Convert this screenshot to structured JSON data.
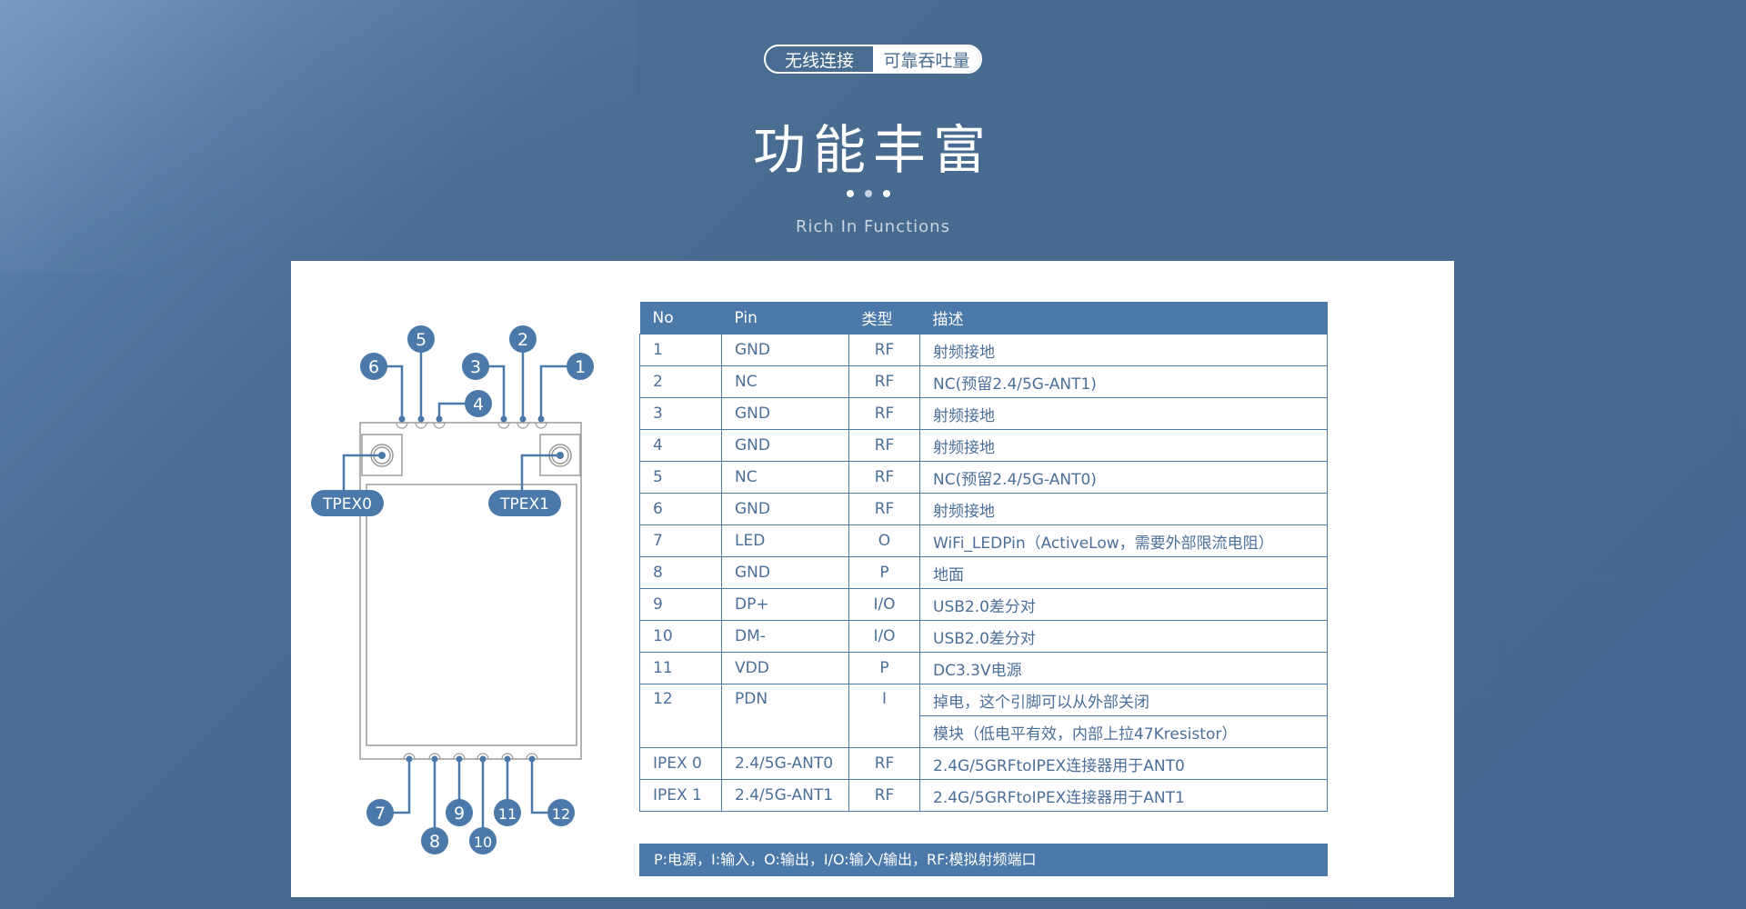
{
  "header": {
    "pill_left": "无线连接",
    "pill_right": "可靠吞吐量",
    "title": "功能丰富",
    "subtitle": "Rich In Functions"
  },
  "diagram": {
    "top_pins": [
      "1",
      "2",
      "3",
      "4",
      "5",
      "6"
    ],
    "bottom_pins": [
      "7",
      "8",
      "9",
      "10",
      "11",
      "12"
    ],
    "antennas": [
      "TPEX0",
      "TPEX1"
    ]
  },
  "table": {
    "headers": [
      "No",
      "Pin",
      "类型",
      "描述"
    ],
    "rows": [
      {
        "no": "1",
        "pin": "GND",
        "type": "RF",
        "desc": "射频接地"
      },
      {
        "no": "2",
        "pin": "NC",
        "type": "RF",
        "desc": "NC(预留2.4/5G-ANT1)"
      },
      {
        "no": "3",
        "pin": "GND",
        "type": "RF",
        "desc": "射频接地"
      },
      {
        "no": "4",
        "pin": "GND",
        "type": "RF",
        "desc": "射频接地"
      },
      {
        "no": "5",
        "pin": "NC",
        "type": "RF",
        "desc": "NC(预留2.4/5G-ANT0)"
      },
      {
        "no": "6",
        "pin": "GND",
        "type": "RF",
        "desc": "射频接地"
      },
      {
        "no": "7",
        "pin": "LED",
        "type": "O",
        "desc": "WiFi_LEDPin（ActiveLow，需要外部限流电阻）"
      },
      {
        "no": "8",
        "pin": "GND",
        "type": "P",
        "desc": "地面"
      },
      {
        "no": "9",
        "pin": "DP+",
        "type": "I/O",
        "desc": "USB2.0差分对"
      },
      {
        "no": "10",
        "pin": "DM-",
        "type": "I/O",
        "desc": "USB2.0差分对"
      },
      {
        "no": "11",
        "pin": "VDD",
        "type": "P",
        "desc": "DC3.3V电源"
      },
      {
        "no": "12",
        "pin": "PDN",
        "type": "I",
        "desc": "掉电，这个引脚可以从外部关闭",
        "desc2": "模块（低电平有效，内部上拉47Kresistor）"
      },
      {
        "no": "IPEX 0",
        "pin": "2.4/5G-ANT0",
        "type": "RF",
        "desc": "2.4G/5GRFtoIPEX连接器用于ANT0"
      },
      {
        "no": "IPEX 1",
        "pin": "2.4/5G-ANT1",
        "type": "RF",
        "desc": "2.4G/5GRFtoIPEX连接器用于ANT1"
      }
    ],
    "legend": "P:电源，I:输入，O:输出，I/O:输入/输出，RF:模拟射频端口"
  },
  "colors": {
    "accent": "#4b79a9",
    "background": "#486a8f",
    "text": "#4b6f98"
  }
}
